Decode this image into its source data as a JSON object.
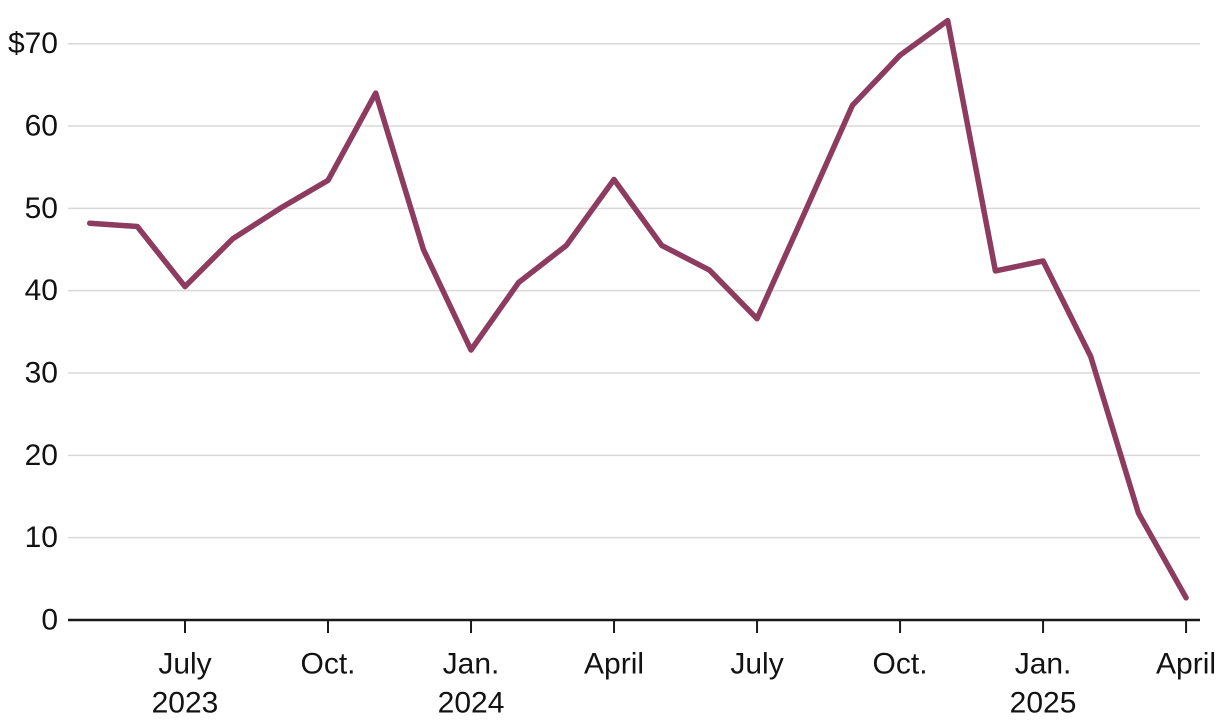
{
  "chart_data": {
    "type": "line",
    "title": "",
    "subtitle": "",
    "legend": "none",
    "grid": "horizontal-only",
    "currency_prefix": "$",
    "x_monthly": [
      "May 2023",
      "June 2023",
      "July 2023",
      "Aug. 2023",
      "Sept. 2023",
      "Oct. 2023",
      "Nov. 2023",
      "Dec. 2023",
      "Jan. 2024",
      "Feb. 2024",
      "March 2024",
      "April 2024",
      "May 2024",
      "June 2024",
      "July 2024",
      "Aug. 2024",
      "Sept. 2024",
      "Oct. 2024",
      "Nov. 2024",
      "Dec. 2024",
      "Jan. 2025",
      "Feb. 2025",
      "March 2025",
      "April 2025"
    ],
    "values": [
      48.2,
      47.8,
      40.5,
      46.3,
      50.0,
      53.4,
      64.0,
      45.0,
      32.8,
      41.0,
      45.5,
      53.5,
      45.5,
      42.5,
      36.6,
      49.5,
      62.5,
      68.6,
      72.8,
      42.4,
      43.6,
      32.0,
      13.0,
      2.7
    ],
    "ylim": [
      0,
      75.5
    ],
    "y_ticks": [
      {
        "value": 0,
        "label": "0"
      },
      {
        "value": 10,
        "label": "10"
      },
      {
        "value": 20,
        "label": "20"
      },
      {
        "value": 30,
        "label": "30"
      },
      {
        "value": 40,
        "label": "40"
      },
      {
        "value": 50,
        "label": "50"
      },
      {
        "value": 60,
        "label": "60"
      },
      {
        "value": 70,
        "label": "$70"
      }
    ],
    "x_ticks": [
      {
        "month_index": 2,
        "label": "July",
        "sublabel": "2023"
      },
      {
        "month_index": 5,
        "label": "Oct.",
        "sublabel": ""
      },
      {
        "month_index": 8,
        "label": "Jan.",
        "sublabel": "2024"
      },
      {
        "month_index": 11,
        "label": "April",
        "sublabel": ""
      },
      {
        "month_index": 14,
        "label": "July",
        "sublabel": ""
      },
      {
        "month_index": 17,
        "label": "Oct.",
        "sublabel": ""
      },
      {
        "month_index": 20,
        "label": "Jan.",
        "sublabel": "2025"
      },
      {
        "month_index": 23,
        "label": "April",
        "sublabel": ""
      }
    ],
    "colors": {
      "line": "#8d3c60",
      "grid": "#d8d8d8",
      "axis": "#1a1a1a",
      "text": "#121212",
      "background": "#ffffff"
    }
  }
}
